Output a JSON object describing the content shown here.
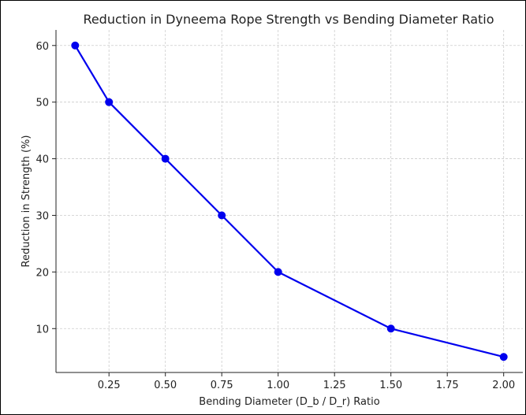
{
  "chart_data": {
    "type": "line",
    "title": "Reduction in Dyneema Rope Strength vs Bending Diameter Ratio",
    "xlabel": "Bending Diameter (D_b / D_r) Ratio",
    "ylabel": "Reduction in Strength (%)",
    "x": [
      0.1,
      0.25,
      0.5,
      0.75,
      1.0,
      1.5,
      2.0
    ],
    "series": [
      {
        "values": [
          60,
          50,
          40,
          30,
          20,
          10,
          5
        ],
        "color": "#0000ee",
        "marker": "circle"
      }
    ],
    "xlim": [
      0.015,
      2.085
    ],
    "ylim": [
      2.25,
      62.75
    ],
    "xticks": [
      0.25,
      0.5,
      0.75,
      1.0,
      1.25,
      1.5,
      1.75,
      2.0
    ],
    "xtick_labels": [
      "0.25",
      "0.50",
      "0.75",
      "1.00",
      "1.25",
      "1.50",
      "1.75",
      "2.00"
    ],
    "yticks": [
      10,
      20,
      30,
      40,
      50,
      60
    ],
    "ytick_labels": [
      "10",
      "20",
      "30",
      "40",
      "50",
      "60"
    ],
    "grid": true,
    "grid_color": "#cccccc"
  }
}
